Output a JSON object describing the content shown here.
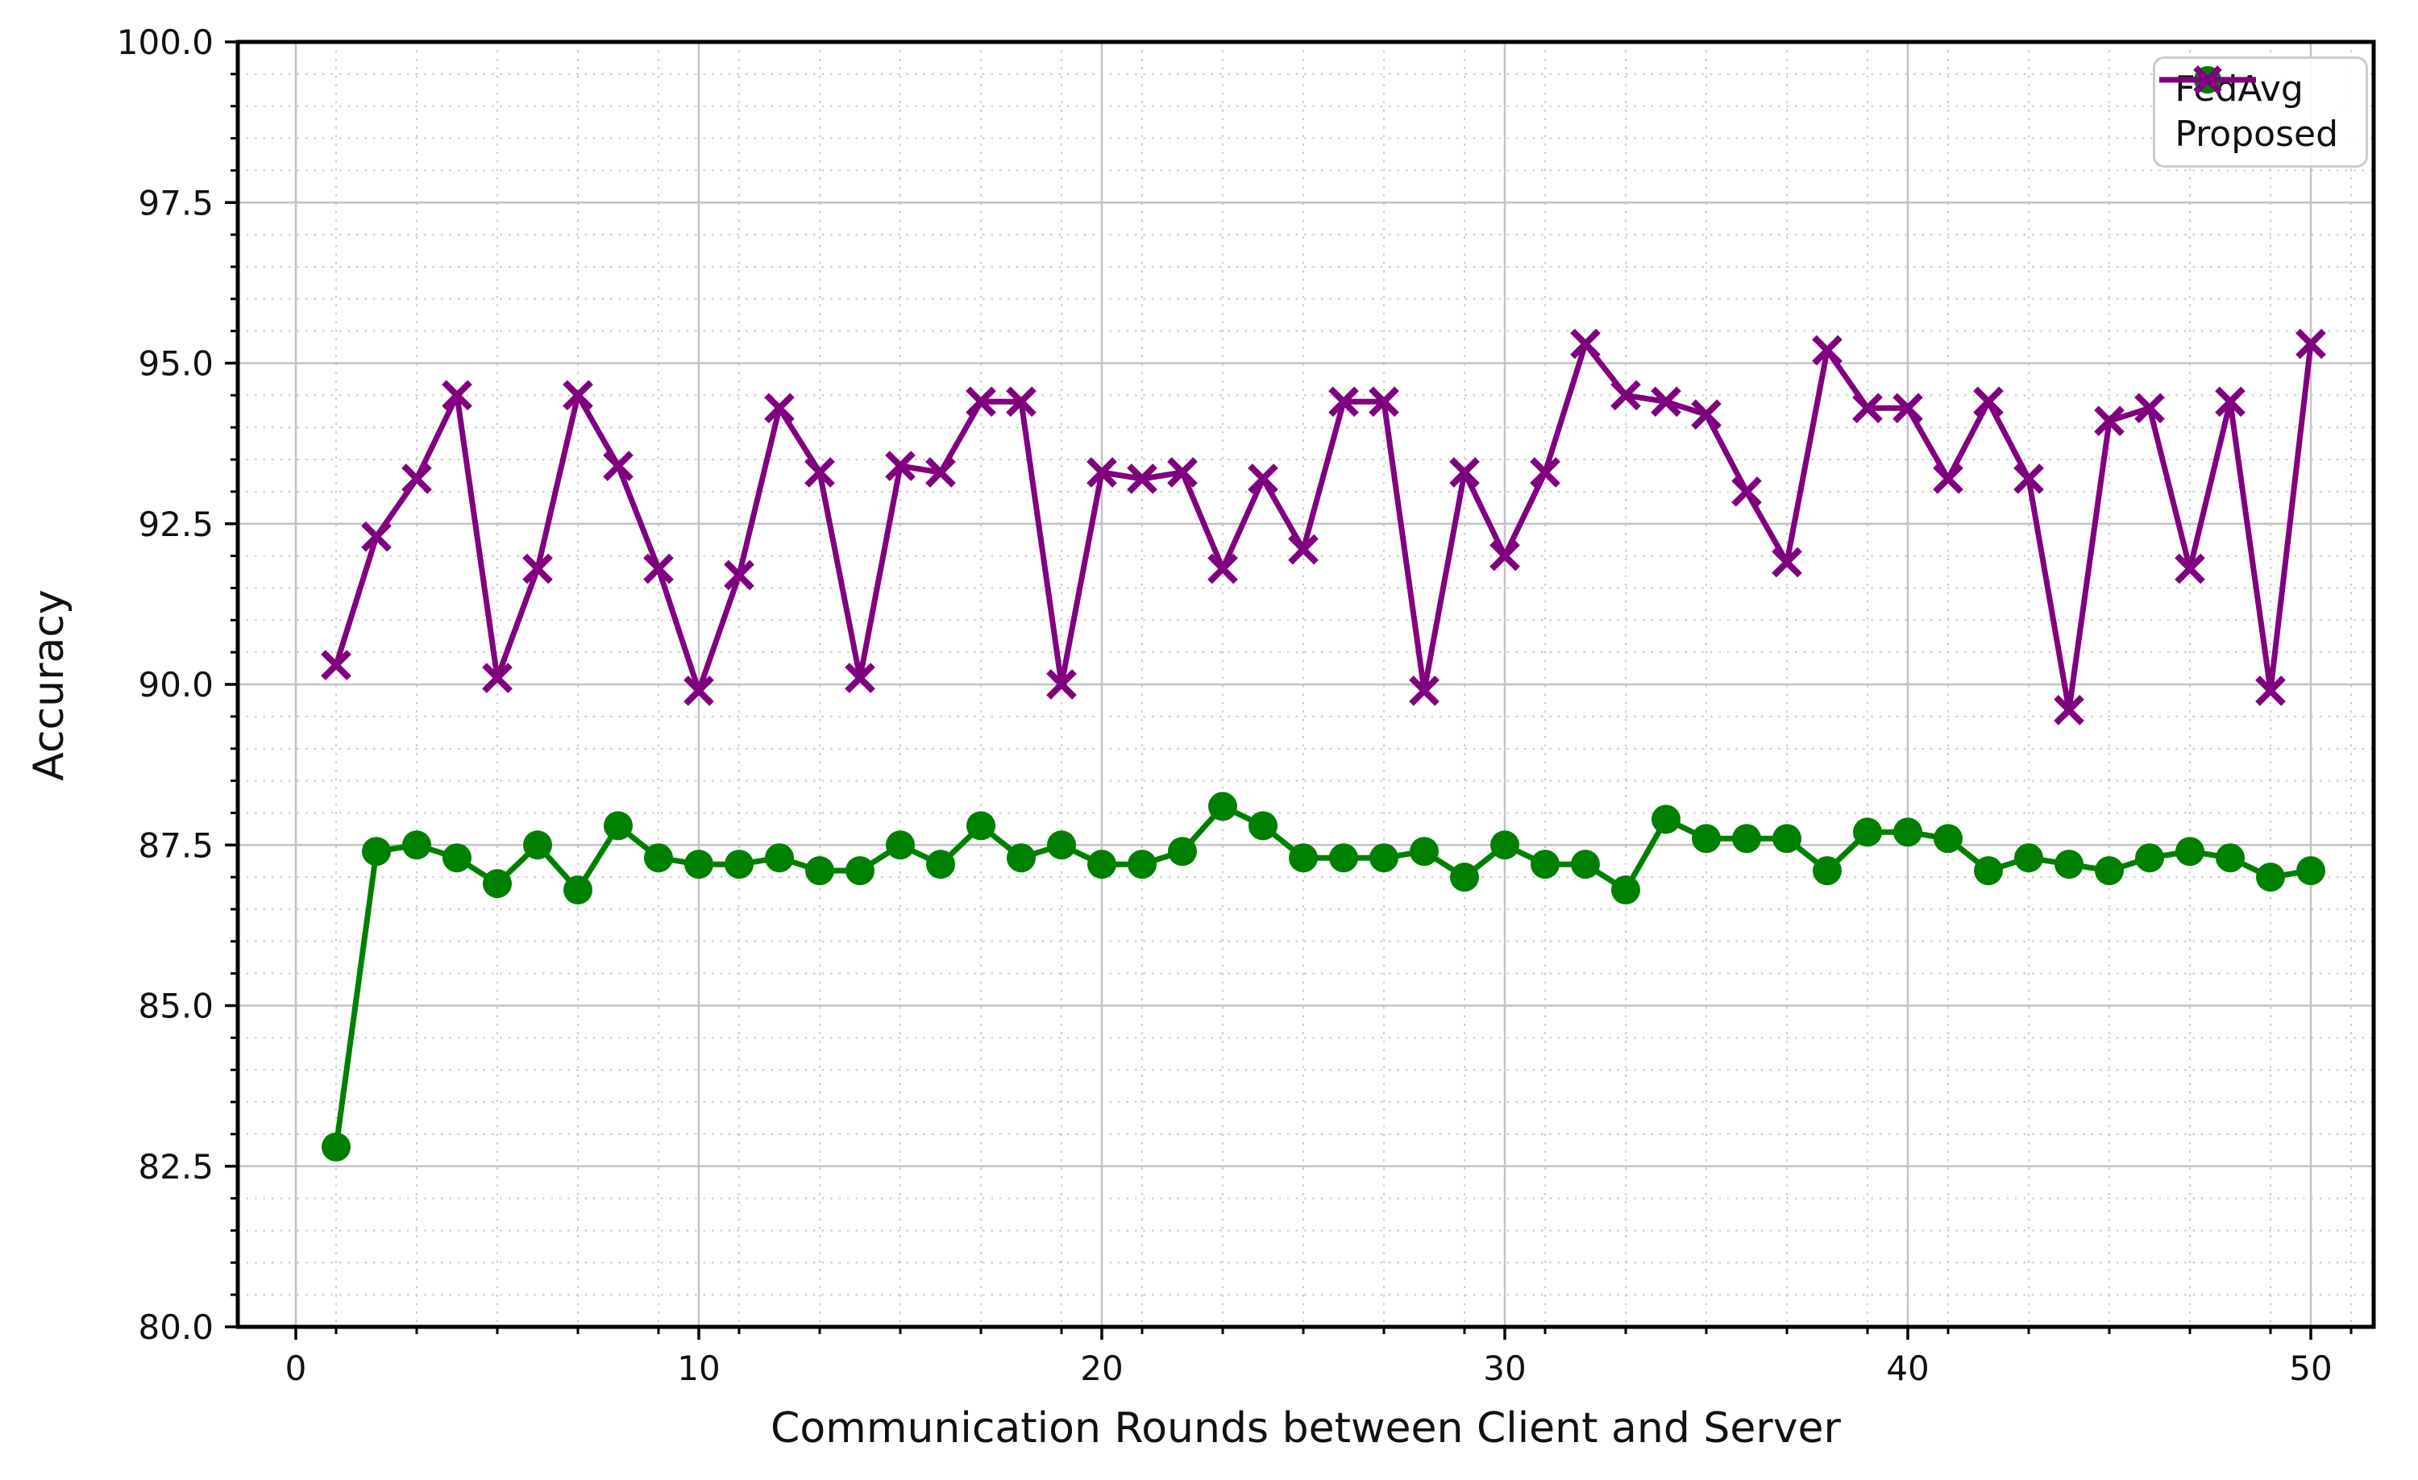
{
  "figure": {
    "xlabel": "Communication Rounds between Client and Server",
    "ylabel": "Accuracy"
  },
  "legend": {
    "position": "upper-right",
    "entries": [
      {
        "label": "FedAvg",
        "color": "#008000",
        "marker": "circle"
      },
      {
        "label": "Proposed",
        "color": "#800080",
        "marker": "x"
      }
    ]
  },
  "chart_data": {
    "type": "line",
    "title": "",
    "xlabel": "Communication Rounds between Client and Server",
    "ylabel": "Accuracy",
    "xlim": [
      -1.44,
      51.56
    ],
    "ylim": [
      80.0,
      100.0
    ],
    "grid": "both",
    "legend_position": "upper-right",
    "x_major_ticks": [
      0,
      10,
      20,
      30,
      40,
      50
    ],
    "x_tick_labels": [
      "0",
      "10",
      "20",
      "30",
      "40",
      "50"
    ],
    "x_minor_step": 2,
    "y_major_ticks": [
      80.0,
      82.5,
      85.0,
      87.5,
      90.0,
      92.5,
      95.0,
      97.5,
      100.0
    ],
    "y_tick_labels": [
      "80.0",
      "82.5",
      "85.0",
      "87.5",
      "90.0",
      "92.5",
      "95.0",
      "97.5",
      "100.0"
    ],
    "y_minor_step": 0.5,
    "x": [
      1,
      2,
      3,
      4,
      5,
      6,
      7,
      8,
      9,
      10,
      11,
      12,
      13,
      14,
      15,
      16,
      17,
      18,
      19,
      20,
      21,
      22,
      23,
      24,
      25,
      26,
      27,
      28,
      29,
      30,
      31,
      32,
      33,
      34,
      35,
      36,
      37,
      38,
      39,
      40,
      41,
      42,
      43,
      44,
      45,
      46,
      47,
      48,
      49,
      50
    ],
    "series": [
      {
        "name": "FedAvg",
        "color": "#008000",
        "marker": "circle",
        "values": [
          82.8,
          87.4,
          87.5,
          87.3,
          86.9,
          87.5,
          86.8,
          87.8,
          87.3,
          87.2,
          87.2,
          87.3,
          87.1,
          87.1,
          87.5,
          87.2,
          87.8,
          87.3,
          87.5,
          87.2,
          87.2,
          87.4,
          88.1,
          87.8,
          87.3,
          87.3,
          87.3,
          87.4,
          87.0,
          87.5,
          87.2,
          87.2,
          86.8,
          87.9,
          87.6,
          87.6,
          87.6,
          87.1,
          87.7,
          87.7,
          87.6,
          87.1,
          87.3,
          87.2,
          87.1,
          87.3,
          87.4,
          87.3,
          87.0,
          87.1
        ]
      },
      {
        "name": "Proposed",
        "color": "#800080",
        "marker": "x",
        "values": [
          90.3,
          92.3,
          93.2,
          94.5,
          90.1,
          91.8,
          94.5,
          93.4,
          91.8,
          89.9,
          91.7,
          94.3,
          93.3,
          90.1,
          93.4,
          93.3,
          94.4,
          94.4,
          90.0,
          93.3,
          93.2,
          93.3,
          91.8,
          93.2,
          92.1,
          94.4,
          94.4,
          89.9,
          93.3,
          92.0,
          93.3,
          95.3,
          94.5,
          94.4,
          94.2,
          93.0,
          91.9,
          95.2,
          94.3,
          94.3,
          93.2,
          94.4,
          93.2,
          89.6,
          94.1,
          94.3,
          91.8,
          94.4,
          89.9,
          95.3
        ]
      }
    ]
  }
}
